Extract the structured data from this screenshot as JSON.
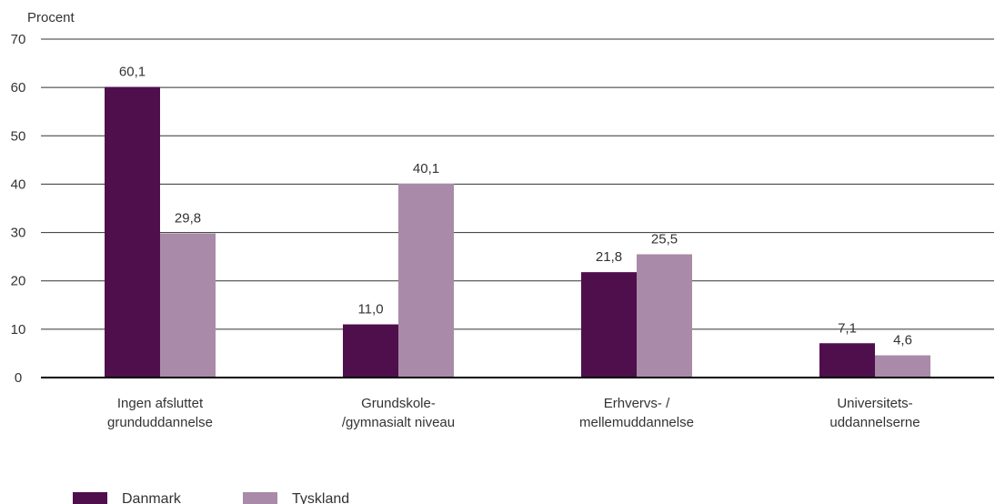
{
  "chart_data": {
    "type": "bar",
    "ylabel": "Procent",
    "ylim": [
      0,
      70
    ],
    "yticks": [
      0,
      10,
      20,
      30,
      40,
      50,
      60,
      70
    ],
    "grid": true,
    "legend_position": "bottom-left",
    "categories": [
      [
        "Ingen afsluttet",
        "grunduddannelse"
      ],
      [
        "Grundskole-",
        "/gymnasialt niveau"
      ],
      [
        "Erhvervs- /",
        "mellemuddannelse"
      ],
      [
        "Universitets-",
        "uddannelserne"
      ]
    ],
    "series": [
      {
        "name": "Danmark",
        "color": "#4f0f4c",
        "values": [
          60.1,
          11.0,
          21.8,
          7.1
        ],
        "labels": [
          "60,1",
          "11,0",
          "21,8",
          "7,1"
        ]
      },
      {
        "name": "Tyskland",
        "color": "#a98aa8",
        "values": [
          29.8,
          40.1,
          25.5,
          4.6
        ],
        "labels": [
          "29,8",
          "40,1",
          "25,5",
          "4,6"
        ]
      }
    ]
  }
}
